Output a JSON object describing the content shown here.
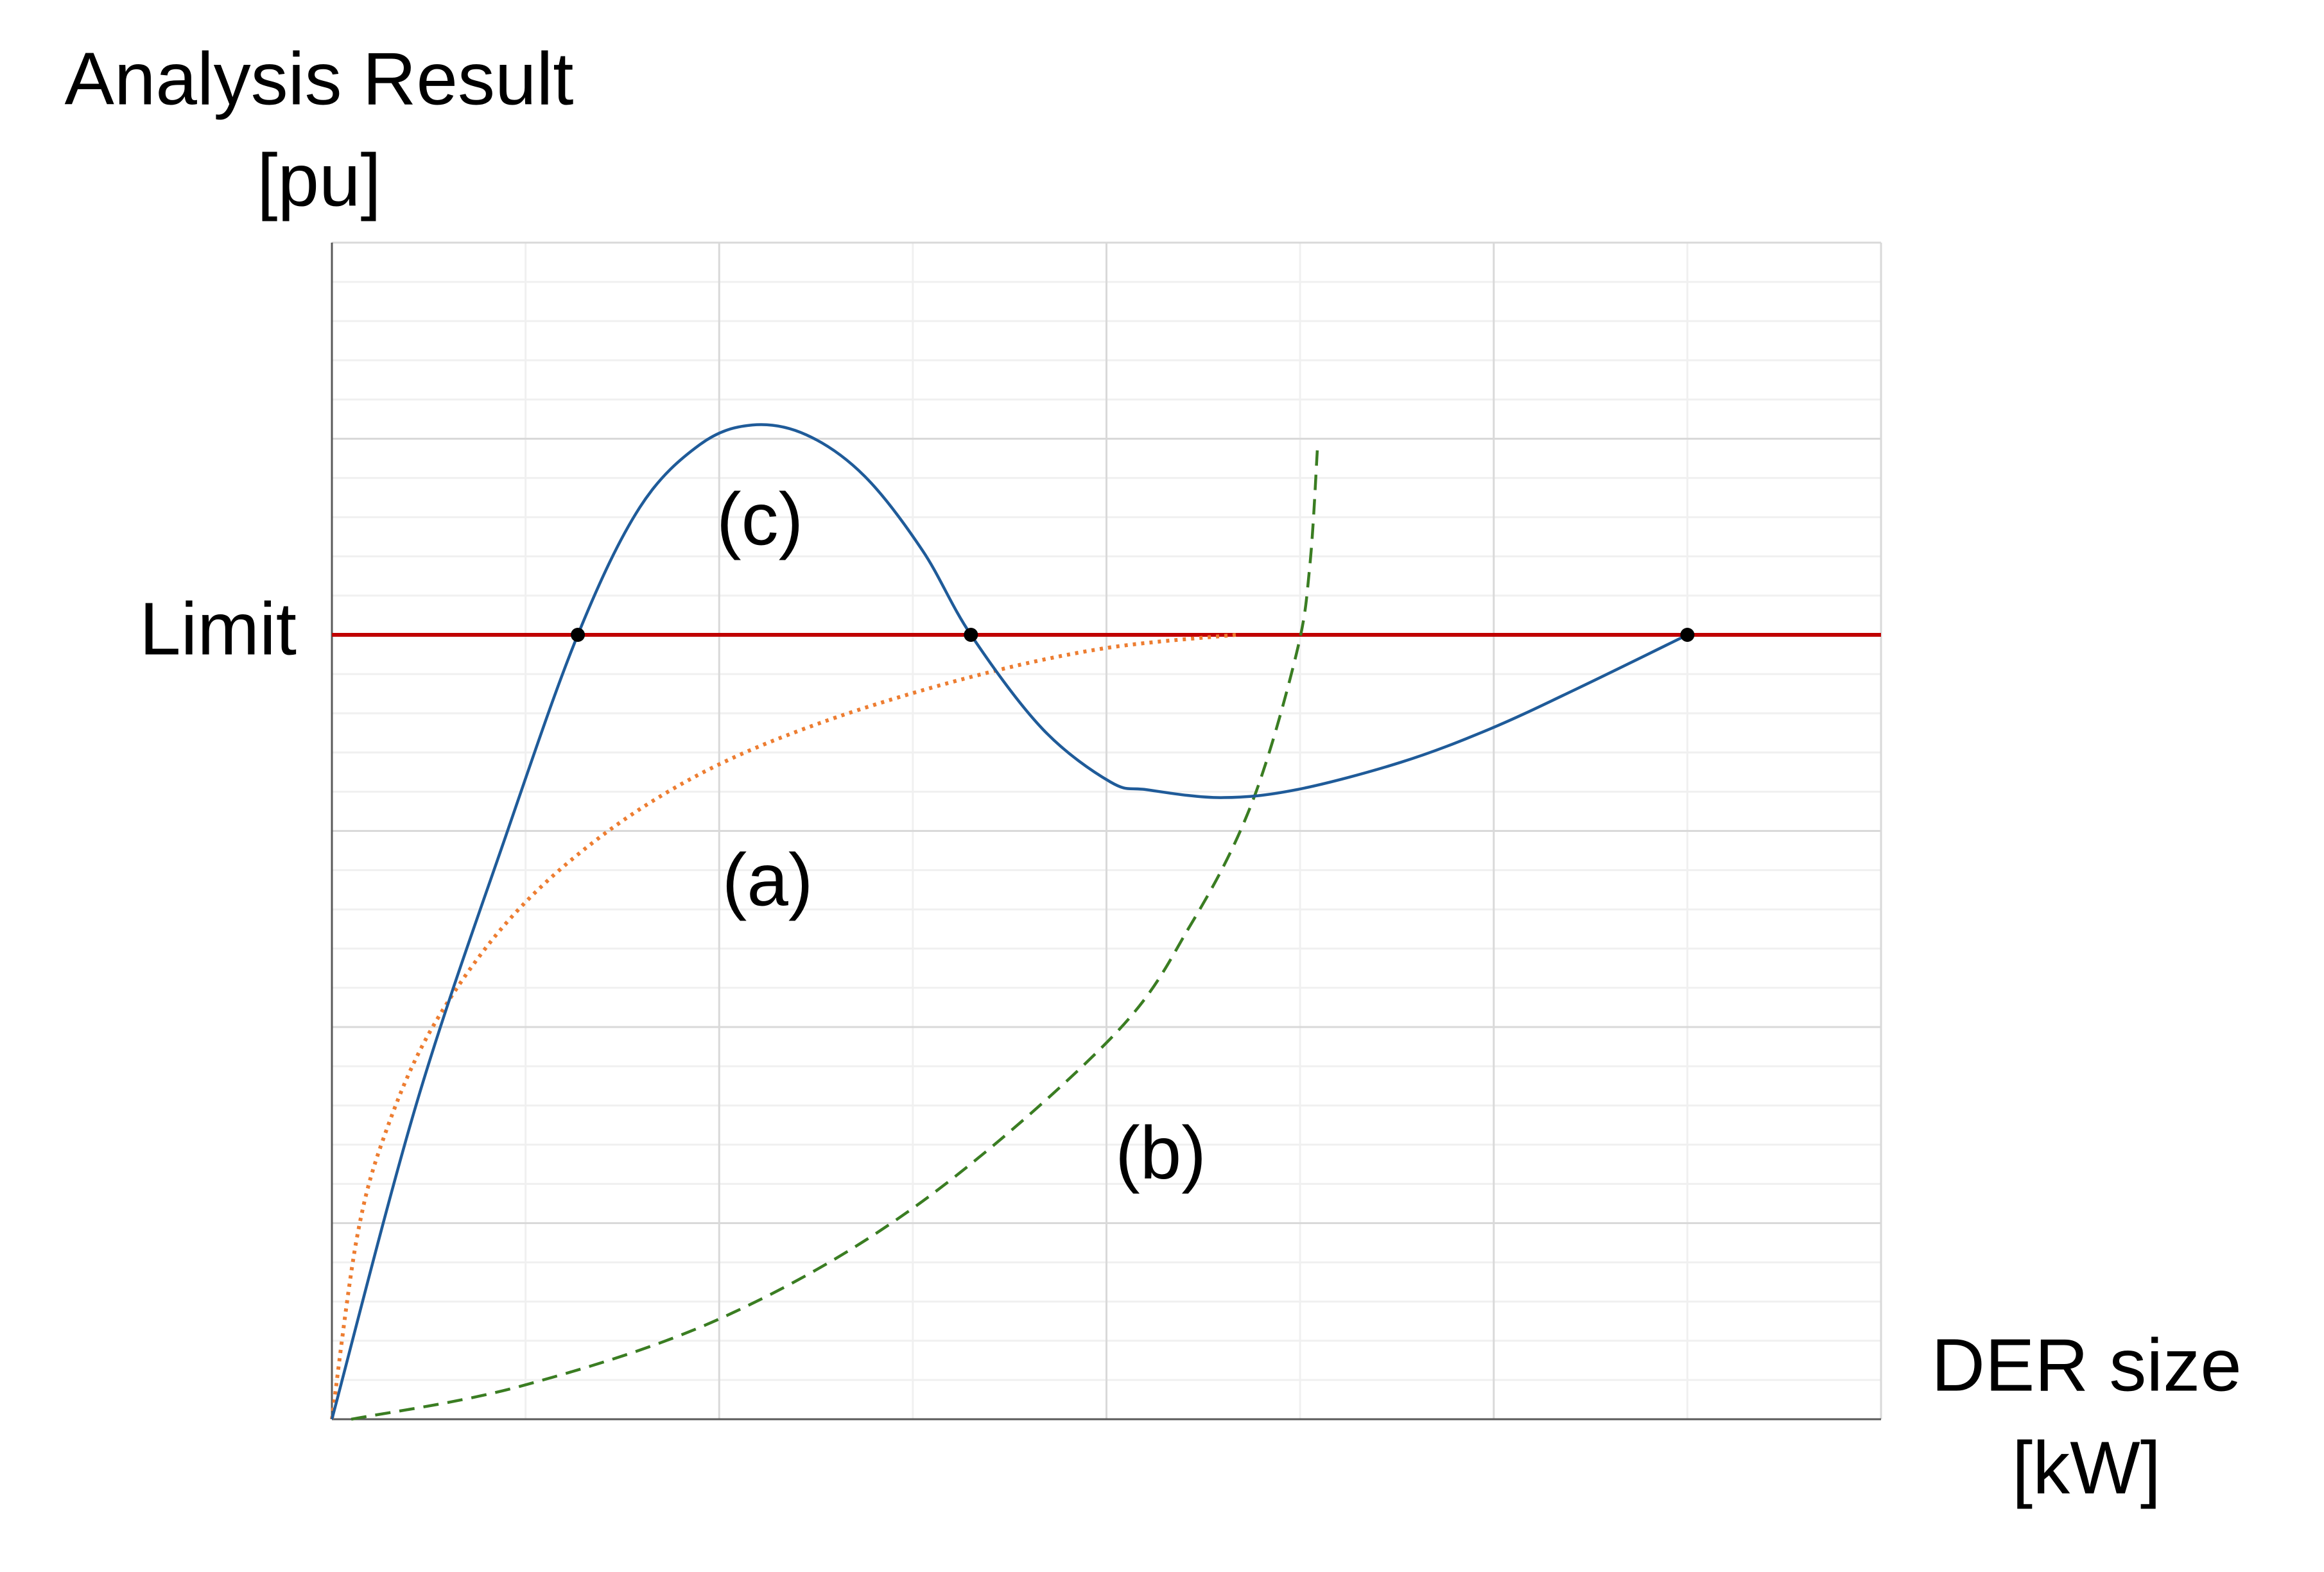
{
  "chart_data": {
    "type": "line",
    "ylabel": [
      "Analysis Result",
      "[pu]"
    ],
    "xlabel": [
      "DER size",
      "[kW]"
    ],
    "xlim": [
      0,
      8
    ],
    "ylim": [
      0,
      6
    ],
    "xticks": [
      0,
      2,
      4,
      6,
      8
    ],
    "xminor_ticks": [
      1,
      3,
      5,
      7
    ],
    "yticks": [
      0,
      1,
      2,
      3,
      4,
      5,
      6
    ],
    "yminor_ticks": [
      0.2,
      0.4,
      0.6,
      0.8,
      1.2,
      1.4,
      1.6,
      1.8,
      2.2,
      2.4,
      2.6,
      2.8,
      3.2,
      3.4,
      3.6,
      3.8,
      4.2,
      4.4,
      4.6,
      4.8,
      5.2,
      5.4,
      5.6,
      5.8
    ],
    "tick_labels": false,
    "grid": true,
    "limit": {
      "label": "Limit",
      "value": 4,
      "color": "#c00000"
    },
    "series": [
      {
        "color": "#ed7d31",
        "line_style": "dotted",
        "x": [
          0,
          0.13,
          0.28,
          0.52,
          0.9,
          1.36,
          1.9,
          2.52,
          3.28,
          3.98,
          4.67
        ],
        "y": [
          0,
          0.93,
          1.47,
          2.0,
          2.53,
          2.95,
          3.29,
          3.55,
          3.78,
          3.93,
          4.0
        ]
      },
      {
        "color": "#3a7d22",
        "line_style": "dashed",
        "x": [
          0.1,
          0.98,
          2.02,
          3.02,
          4.02,
          4.44,
          4.75,
          4.98,
          5.05,
          5.09
        ],
        "y": [
          0,
          0.17,
          0.52,
          1.09,
          1.94,
          2.53,
          3.14,
          3.9,
          4.35,
          4.96
        ]
      },
      {
        "color": "#1f5b99",
        "line_style": "solid",
        "x": [
          0,
          0.44,
          0.9,
          1.27,
          1.59,
          1.9,
          2.17,
          2.45,
          2.75,
          3.05,
          3.3,
          3.67,
          4.02,
          4.21,
          4.59,
          4.98,
          5.52,
          5.98,
          6.44,
          7.0
        ],
        "y": [
          0,
          1.62,
          2.98,
          4.0,
          4.65,
          4.97,
          5.07,
          5.02,
          4.81,
          4.43,
          4.0,
          3.52,
          3.25,
          3.21,
          3.17,
          3.21,
          3.35,
          3.52,
          3.73,
          4.0
        ]
      }
    ],
    "markers": {
      "color": "#000000",
      "x": [
        1.27,
        3.3,
        7.0
      ],
      "y": [
        4,
        4,
        4
      ]
    },
    "annotations": [
      {
        "text": "(a)",
        "x": 2.25,
        "y": 2.72
      },
      {
        "text": "(b)",
        "x": 4.28,
        "y": 1.33
      },
      {
        "text": "(c)",
        "x": 2.21,
        "y": 4.56
      }
    ]
  }
}
